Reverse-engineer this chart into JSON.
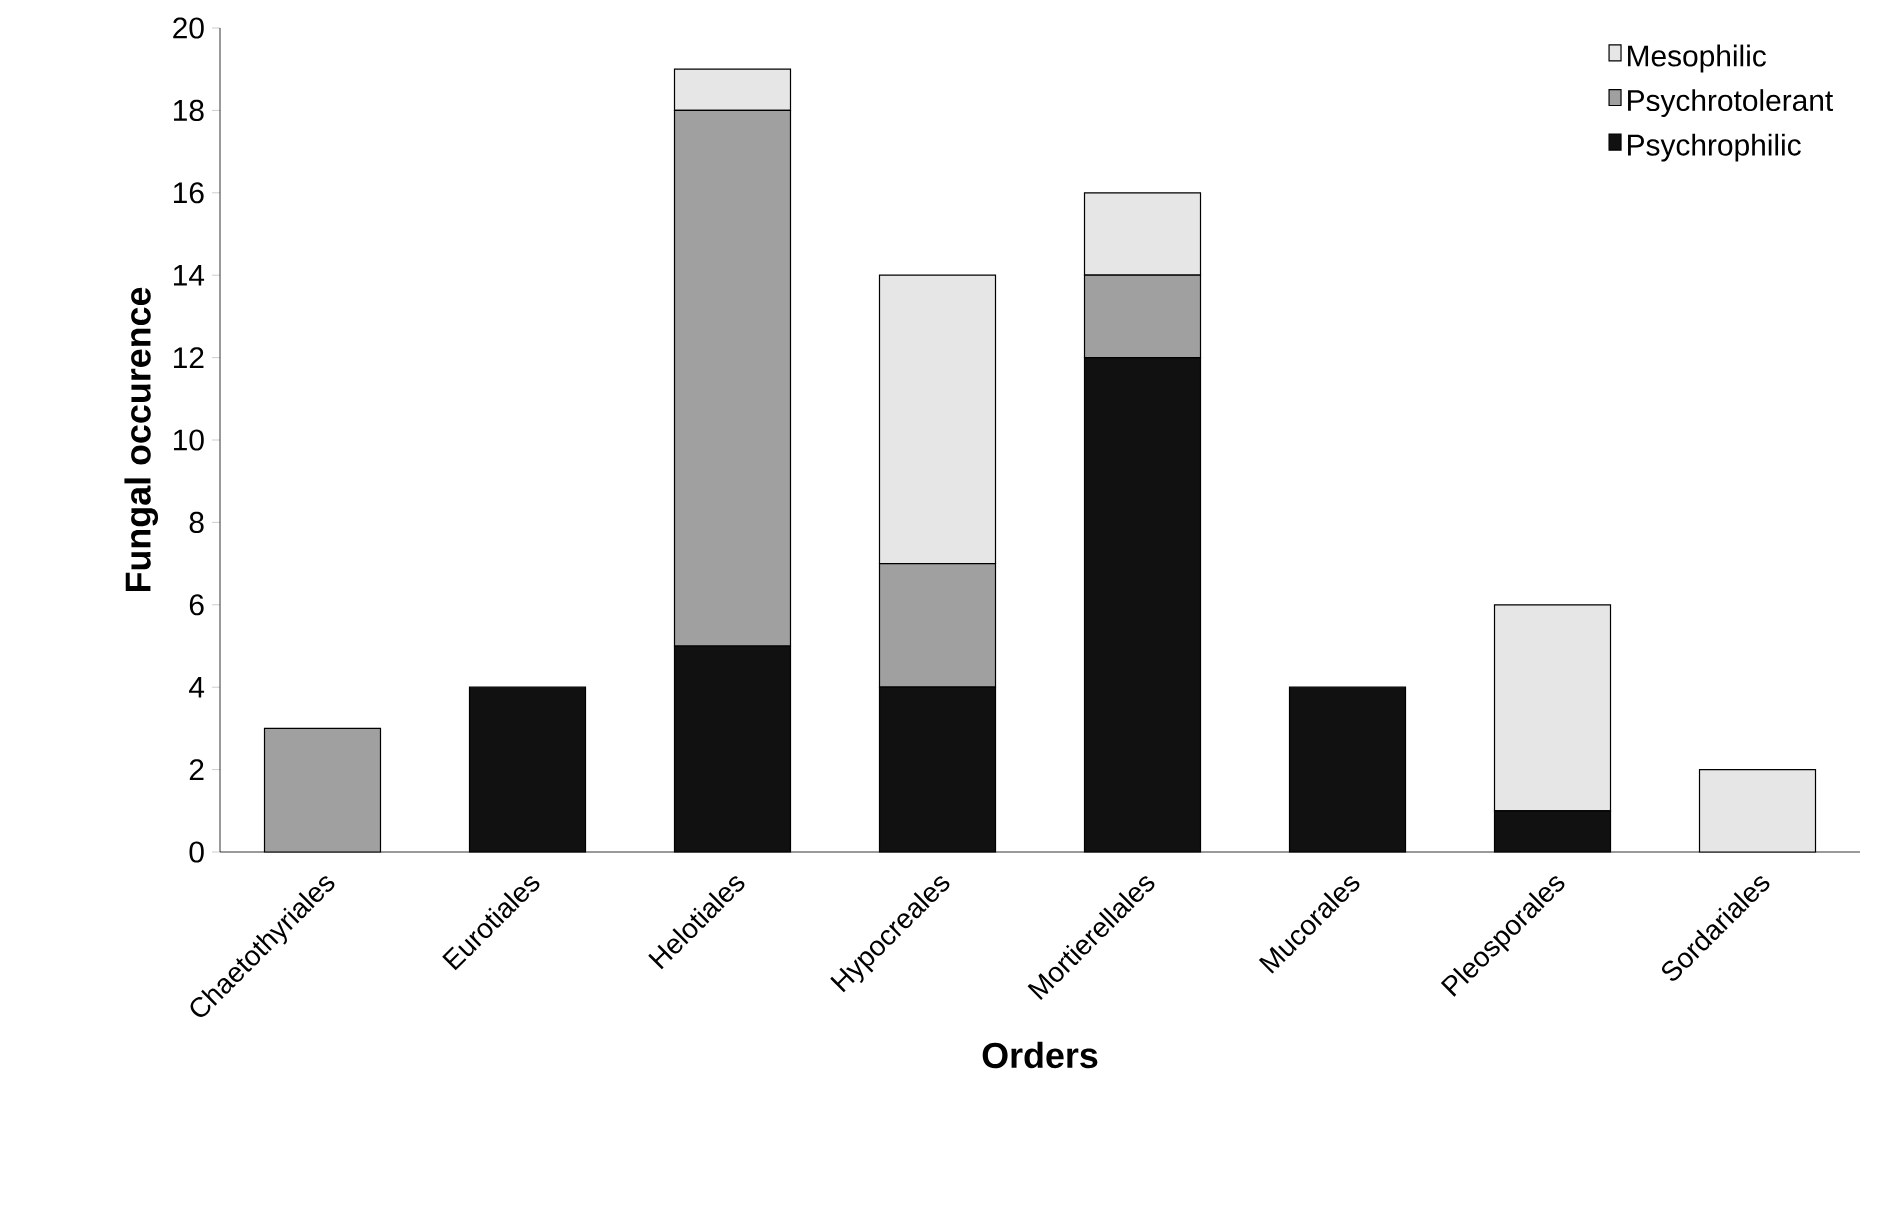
{
  "chart_data": {
    "type": "bar",
    "stacked": true,
    "xlabel": "Orders",
    "ylabel": "Fungal occurence",
    "categories": [
      "Chaetothyriales",
      "Eurotiales",
      "Helotiales",
      "Hypocreales",
      "Mortierellales",
      "Mucorales",
      "Pleosporales",
      "Sordariales"
    ],
    "series": [
      {
        "name": "Psychrophilic",
        "color": "#111111",
        "values": [
          0,
          4,
          5,
          4,
          12,
          4,
          1,
          0
        ]
      },
      {
        "name": "Psychrotolerant",
        "color": "#a0a0a0",
        "values": [
          3,
          0,
          13,
          3,
          2,
          0,
          0,
          0
        ]
      },
      {
        "name": "Mesophilic",
        "color": "#e6e6e6",
        "values": [
          0,
          0,
          1,
          7,
          2,
          0,
          5,
          2
        ]
      }
    ],
    "ylim": [
      0,
      20
    ],
    "yticks": [
      0,
      2,
      4,
      6,
      8,
      10,
      12,
      14,
      16,
      18,
      20
    ],
    "grid": false,
    "legend": "top right"
  }
}
